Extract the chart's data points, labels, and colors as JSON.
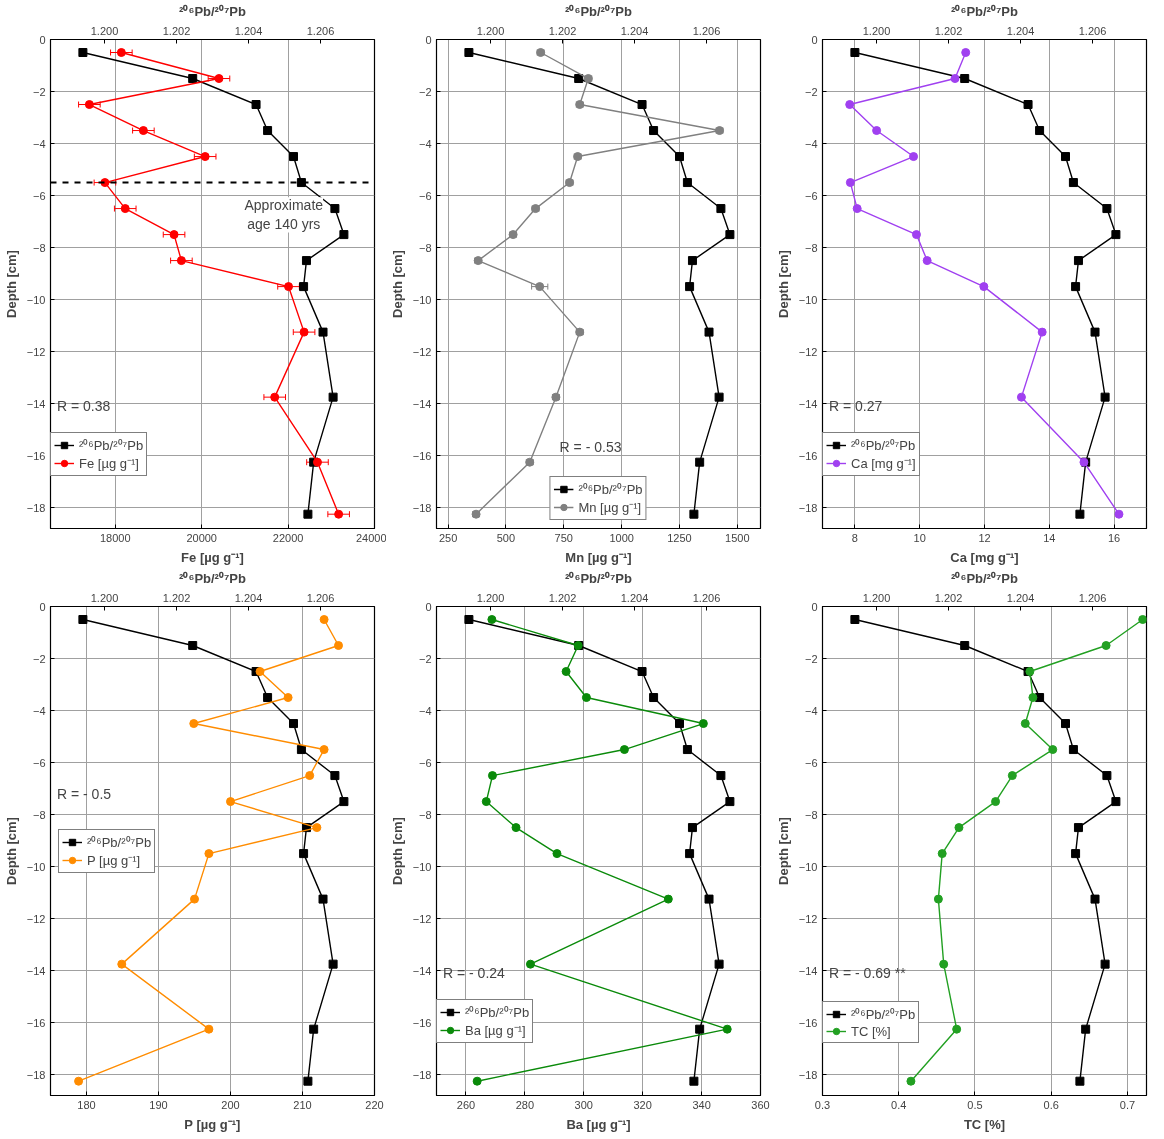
{
  "chart_data": [
    {
      "type": "line",
      "xlabel": "Fe [µg g⁻¹]",
      "x2label": "²⁰⁶Pb/²⁰⁷Pb",
      "ylabel": "Depth [cm]",
      "xlim": [
        16500,
        24000
      ],
      "xticks": [
        18000,
        20000,
        22000,
        24000
      ],
      "x2lim": [
        1.1985,
        1.2075
      ],
      "x2ticks": [
        {
          "value": 1.2,
          "label": "1.200"
        },
        {
          "value": 1.202,
          "label": "1.202"
        },
        {
          "value": 1.204,
          "label": "1.204"
        },
        {
          "value": 1.206,
          "label": "1.206"
        }
      ],
      "ylim": [
        -18.8,
        0
      ],
      "yticks": [
        {
          "value": -18,
          "label": "−18"
        },
        {
          "value": -16,
          "label": "−16"
        },
        {
          "value": -14,
          "label": "−14"
        },
        {
          "value": -12,
          "label": "−12"
        },
        {
          "value": -10,
          "label": "−10"
        },
        {
          "value": -8,
          "label": "−8"
        },
        {
          "value": -6,
          "label": "−6"
        },
        {
          "value": -4,
          "label": "−4"
        },
        {
          "value": -2,
          "label": "−2"
        },
        {
          "value": 0,
          "label": "0"
        }
      ],
      "grid": true,
      "legend": "bottom left",
      "annotations": [
        "R = 0.38"
      ],
      "ref_lines": [
        {
          "axis": "y",
          "value": -5.5,
          "label": "Approximate\nage 140 yrs",
          "line_style": "dashed",
          "color": "#000000"
        }
      ],
      "series": [
        {
          "name": "²⁰⁶Pb/²⁰⁷Pb",
          "color": "#000000",
          "marker": "square",
          "axis": "x2",
          "x": [
            1.1994,
            1.20245,
            1.20421,
            1.20453,
            1.20525,
            1.20547,
            1.2064,
            1.20665,
            1.20561,
            1.20553,
            1.20607,
            1.20635,
            1.20581,
            1.20565
          ],
          "values": [
            -0.5,
            -1.5,
            -2.5,
            -3.5,
            -4.5,
            -5.5,
            -6.5,
            -7.5,
            -8.5,
            -9.5,
            -11.25,
            -13.75,
            -16.25,
            -18.25
          ]
        },
        {
          "name": "Fe [µg g⁻¹]",
          "color": "#ff0000",
          "marker": "circle",
          "x": [
            18140,
            20400,
            17400,
            18650,
            20080,
            17760,
            18230,
            19360,
            19530,
            22010,
            22370,
            21690,
            22680,
            23170
          ],
          "xerrors": [
            250,
            250,
            250,
            250,
            250,
            250,
            250,
            250,
            250,
            250,
            250,
            250,
            250,
            250
          ],
          "values": [
            -0.5,
            -1.5,
            -2.5,
            -3.5,
            -4.5,
            -5.5,
            -6.5,
            -7.5,
            -8.5,
            -9.5,
            -11.25,
            -13.75,
            -16.25,
            -18.25
          ]
        }
      ]
    },
    {
      "type": "line",
      "xlabel": "Mn [µg g⁻¹]",
      "x2label": "²⁰⁶Pb/²⁰⁷Pb",
      "ylabel": "Depth [cm]",
      "xlim": [
        200,
        1600
      ],
      "xticks": [
        250,
        500,
        750,
        1000,
        1250,
        1500
      ],
      "x2lim": [
        1.1985,
        1.2075
      ],
      "x2ticks": [
        {
          "value": 1.2,
          "label": "1.200"
        },
        {
          "value": 1.202,
          "label": "1.202"
        },
        {
          "value": 1.204,
          "label": "1.204"
        },
        {
          "value": 1.206,
          "label": "1.206"
        }
      ],
      "ylim": [
        -18.8,
        0
      ],
      "yticks": [
        {
          "value": -18,
          "label": "−18"
        },
        {
          "value": -16,
          "label": "−16"
        },
        {
          "value": -14,
          "label": "−14"
        },
        {
          "value": -12,
          "label": "−12"
        },
        {
          "value": -10,
          "label": "−10"
        },
        {
          "value": -8,
          "label": "−8"
        },
        {
          "value": -6,
          "label": "−6"
        },
        {
          "value": -4,
          "label": "−4"
        },
        {
          "value": -2,
          "label": "−2"
        },
        {
          "value": 0,
          "label": "0"
        }
      ],
      "grid": true,
      "legend": "bottom",
      "annotations": [
        "R = - 0.53"
      ],
      "series": [
        {
          "name": "²⁰⁶Pb/²⁰⁷Pb",
          "color": "#000000",
          "marker": "square",
          "axis": "x2",
          "x": [
            1.1994,
            1.20245,
            1.20421,
            1.20453,
            1.20525,
            1.20547,
            1.2064,
            1.20665,
            1.20561,
            1.20553,
            1.20607,
            1.20635,
            1.20581,
            1.20565
          ],
          "values": [
            -0.5,
            -1.5,
            -2.5,
            -3.5,
            -4.5,
            -5.5,
            -6.5,
            -7.5,
            -8.5,
            -9.5,
            -11.25,
            -13.75,
            -16.25,
            -18.25
          ]
        },
        {
          "name": "Mn [µg g⁻¹]",
          "color": "#808080",
          "marker": "circle",
          "x": [
            650,
            856,
            819,
            1423,
            810,
            775,
            628,
            531,
            380,
            646,
            819,
            716,
            603,
            371
          ],
          "xerrors": [
            15,
            15,
            15,
            15,
            15,
            15,
            15,
            15,
            15,
            35,
            15,
            15,
            15,
            15
          ],
          "values": [
            -0.5,
            -1.5,
            -2.5,
            -3.5,
            -4.5,
            -5.5,
            -6.5,
            -7.5,
            -8.5,
            -9.5,
            -11.25,
            -13.75,
            -16.25,
            -18.25
          ]
        }
      ]
    },
    {
      "type": "line",
      "xlabel": "Ca [mg g⁻¹]",
      "x2label": "²⁰⁶Pb/²⁰⁷Pb",
      "ylabel": "Depth [cm]",
      "xlim": [
        7,
        17
      ],
      "xticks": [
        8,
        10,
        12,
        14,
        16
      ],
      "x2lim": [
        1.1985,
        1.2075
      ],
      "x2ticks": [
        {
          "value": 1.2,
          "label": "1.200"
        },
        {
          "value": 1.202,
          "label": "1.202"
        },
        {
          "value": 1.204,
          "label": "1.204"
        },
        {
          "value": 1.206,
          "label": "1.206"
        }
      ],
      "ylim": [
        -18.8,
        0
      ],
      "yticks": [
        {
          "value": -18,
          "label": "−18"
        },
        {
          "value": -16,
          "label": "−16"
        },
        {
          "value": -14,
          "label": "−14"
        },
        {
          "value": -12,
          "label": "−12"
        },
        {
          "value": -10,
          "label": "−10"
        },
        {
          "value": -8,
          "label": "−8"
        },
        {
          "value": -6,
          "label": "−6"
        },
        {
          "value": -4,
          "label": "−4"
        },
        {
          "value": -2,
          "label": "−2"
        },
        {
          "value": 0,
          "label": "0"
        }
      ],
      "grid": true,
      "legend": "bottom left",
      "annotations": [
        "R = 0.27"
      ],
      "series": [
        {
          "name": "²⁰⁶Pb/²⁰⁷Pb",
          "color": "#000000",
          "marker": "square",
          "axis": "x2",
          "x": [
            1.1994,
            1.20245,
            1.20421,
            1.20453,
            1.20525,
            1.20547,
            1.2064,
            1.20665,
            1.20561,
            1.20553,
            1.20607,
            1.20635,
            1.20581,
            1.20565
          ],
          "values": [
            -0.5,
            -1.5,
            -2.5,
            -3.5,
            -4.5,
            -5.5,
            -6.5,
            -7.5,
            -8.5,
            -9.5,
            -11.25,
            -13.75,
            -16.25,
            -18.25
          ]
        },
        {
          "name": "Ca [mg g⁻¹]",
          "color": "#a040f0",
          "marker": "circle",
          "x": [
            11.42,
            11.09,
            7.84,
            8.67,
            9.81,
            7.86,
            8.07,
            9.9,
            10.23,
            11.98,
            13.78,
            13.14,
            15.07,
            16.15
          ],
          "values": [
            -0.5,
            -1.5,
            -2.5,
            -3.5,
            -4.5,
            -5.5,
            -6.5,
            -7.5,
            -8.5,
            -9.5,
            -11.25,
            -13.75,
            -16.25,
            -18.25
          ]
        }
      ]
    },
    {
      "type": "line",
      "xlabel": "P [µg g⁻¹]",
      "x2label": "²⁰⁶Pb/²⁰⁷Pb",
      "ylabel": "Depth [cm]",
      "xlim": [
        175,
        220
      ],
      "xticks": [
        180,
        190,
        200,
        210,
        220
      ],
      "x2lim": [
        1.1985,
        1.2075
      ],
      "x2ticks": [
        {
          "value": 1.2,
          "label": "1.200"
        },
        {
          "value": 1.202,
          "label": "1.202"
        },
        {
          "value": 1.204,
          "label": "1.204"
        },
        {
          "value": 1.206,
          "label": "1.206"
        }
      ],
      "ylim": [
        -18.8,
        0
      ],
      "yticks": [
        {
          "value": -18,
          "label": "−18"
        },
        {
          "value": -16,
          "label": "−16"
        },
        {
          "value": -14,
          "label": "−14"
        },
        {
          "value": -12,
          "label": "−12"
        },
        {
          "value": -10,
          "label": "−10"
        },
        {
          "value": -8,
          "label": "−8"
        },
        {
          "value": -6,
          "label": "−6"
        },
        {
          "value": -4,
          "label": "−4"
        },
        {
          "value": -2,
          "label": "−2"
        },
        {
          "value": 0,
          "label": "0"
        }
      ],
      "grid": true,
      "legend": "left",
      "annotations": [
        "R = - 0.5"
      ],
      "series": [
        {
          "name": "²⁰⁶Pb/²⁰⁷Pb",
          "color": "#000000",
          "marker": "square",
          "axis": "x2",
          "x": [
            1.1994,
            1.20245,
            1.20421,
            1.20453,
            1.20525,
            1.20547,
            1.2064,
            1.20665,
            1.20561,
            1.20553,
            1.20607,
            1.20635,
            1.20581,
            1.20565
          ],
          "values": [
            -0.5,
            -1.5,
            -2.5,
            -3.5,
            -4.5,
            -5.5,
            -6.5,
            -7.5,
            -8.5,
            -9.5,
            -11.25,
            -13.75,
            -16.25,
            -18.25
          ]
        },
        {
          "name": "P [µg g⁻¹]",
          "color": "#ff8c00",
          "marker": "circle",
          "x": [
            213,
            215,
            204.1,
            208,
            194.9,
            213,
            211,
            200,
            212,
            197,
            195,
            184.9,
            197,
            178.9
          ],
          "values": [
            -0.5,
            -1.5,
            -2.5,
            -3.5,
            -4.5,
            -5.5,
            -6.5,
            -7.5,
            -8.5,
            -9.5,
            -11.25,
            -13.75,
            -16.25,
            -18.25
          ]
        }
      ]
    },
    {
      "type": "line",
      "xlabel": "Ba [µg g⁻¹]",
      "x2label": "²⁰⁶Pb/²⁰⁷Pb",
      "ylabel": "Depth [cm]",
      "xlim": [
        250,
        360
      ],
      "xticks": [
        260,
        280,
        300,
        320,
        340,
        360
      ],
      "x2lim": [
        1.1985,
        1.2075
      ],
      "x2ticks": [
        {
          "value": 1.2,
          "label": "1.200"
        },
        {
          "value": 1.202,
          "label": "1.202"
        },
        {
          "value": 1.204,
          "label": "1.204"
        },
        {
          "value": 1.206,
          "label": "1.206"
        }
      ],
      "ylim": [
        -18.8,
        0
      ],
      "yticks": [
        {
          "value": -18,
          "label": "−18"
        },
        {
          "value": -16,
          "label": "−16"
        },
        {
          "value": -14,
          "label": "−14"
        },
        {
          "value": -12,
          "label": "−12"
        },
        {
          "value": -10,
          "label": "−10"
        },
        {
          "value": -8,
          "label": "−8"
        },
        {
          "value": -6,
          "label": "−6"
        },
        {
          "value": -4,
          "label": "−4"
        },
        {
          "value": -2,
          "label": "−2"
        },
        {
          "value": 0,
          "label": "0"
        }
      ],
      "grid": true,
      "legend": "bottom left",
      "annotations": [
        "R = - 0.24"
      ],
      "series": [
        {
          "name": "²⁰⁶Pb/²⁰⁷Pb",
          "color": "#000000",
          "marker": "square",
          "axis": "x2",
          "x": [
            1.1994,
            1.20245,
            1.20421,
            1.20453,
            1.20525,
            1.20547,
            1.2064,
            1.20665,
            1.20561,
            1.20553,
            1.20607,
            1.20635,
            1.20581,
            1.20565
          ],
          "values": [
            -0.5,
            -1.5,
            -2.5,
            -3.5,
            -4.5,
            -5.5,
            -6.5,
            -7.5,
            -8.5,
            -9.5,
            -11.25,
            -13.75,
            -16.25,
            -18.25
          ]
        },
        {
          "name": "Ba [µg g⁻¹]",
          "color": "#0a8a0a",
          "marker": "circle",
          "x": [
            268.8,
            298.1,
            294,
            300.9,
            340.6,
            313.8,
            269,
            266.9,
            277,
            290.9,
            328.7,
            281.9,
            348.7,
            263.8
          ],
          "values": [
            -0.5,
            -1.5,
            -2.5,
            -3.5,
            -4.5,
            -5.5,
            -6.5,
            -7.5,
            -8.5,
            -9.5,
            -11.25,
            -13.75,
            -16.25,
            -18.25
          ]
        }
      ]
    },
    {
      "type": "line",
      "xlabel": "TC [%]",
      "x2label": "²⁰⁶Pb/²⁰⁷Pb",
      "ylabel": "Depth [cm]",
      "xlim": [
        0.3,
        0.725
      ],
      "xticks": [
        0.3,
        0.4,
        0.5,
        0.6,
        0.7
      ],
      "x2lim": [
        1.1985,
        1.2075
      ],
      "x2ticks": [
        {
          "value": 1.2,
          "label": "1.200"
        },
        {
          "value": 1.202,
          "label": "1.202"
        },
        {
          "value": 1.204,
          "label": "1.204"
        },
        {
          "value": 1.206,
          "label": "1.206"
        }
      ],
      "ylim": [
        -18.8,
        0
      ],
      "yticks": [
        {
          "value": -18,
          "label": "−18"
        },
        {
          "value": -16,
          "label": "−16"
        },
        {
          "value": -14,
          "label": "−14"
        },
        {
          "value": -12,
          "label": "−12"
        },
        {
          "value": -10,
          "label": "−10"
        },
        {
          "value": -8,
          "label": "−8"
        },
        {
          "value": -6,
          "label": "−6"
        },
        {
          "value": -4,
          "label": "−4"
        },
        {
          "value": -2,
          "label": "−2"
        },
        {
          "value": 0,
          "label": "0"
        }
      ],
      "grid": true,
      "legend": "bottom left",
      "annotations": [
        "R = - 0.69 **"
      ],
      "series": [
        {
          "name": "²⁰⁶Pb/²⁰⁷Pb",
          "color": "#000000",
          "marker": "square",
          "axis": "x2",
          "x": [
            1.1994,
            1.20245,
            1.20421,
            1.20453,
            1.20525,
            1.20547,
            1.2064,
            1.20665,
            1.20561,
            1.20553,
            1.20607,
            1.20635,
            1.20581,
            1.20565
          ],
          "values": [
            -0.5,
            -1.5,
            -2.5,
            -3.5,
            -4.5,
            -5.5,
            -6.5,
            -7.5,
            -8.5,
            -9.5,
            -11.25,
            -13.75,
            -16.25,
            -18.25
          ]
        },
        {
          "name": "TC [%]",
          "color": "#22a022",
          "marker": "circle",
          "x": [
            0.72,
            0.672,
            0.572,
            0.576,
            0.566,
            0.602,
            0.549,
            0.527,
            0.479,
            0.457,
            0.452,
            0.459,
            0.476,
            0.416
          ],
          "values": [
            -0.5,
            -1.5,
            -2.5,
            -3.5,
            -4.5,
            -5.5,
            -6.5,
            -7.5,
            -8.5,
            -9.5,
            -11.25,
            -13.75,
            -16.25,
            -18.25
          ]
        }
      ]
    }
  ]
}
